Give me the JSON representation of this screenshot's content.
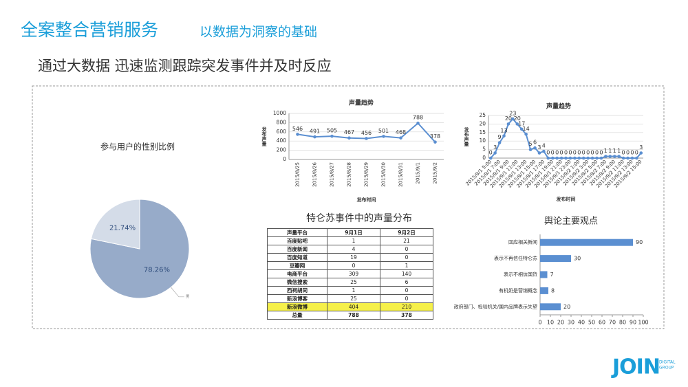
{
  "header": {
    "title": "全案整合营销服务",
    "subtitle": "以数据为洞察的基础"
  },
  "heading": "通过大数据 迅速监测跟踪突发事件并及时反应",
  "chart_data": [
    {
      "type": "pie",
      "title": "参与用户的性别比例",
      "categories": [
        "男",
        null
      ],
      "values": [
        78.26,
        21.74
      ],
      "value_labels": [
        "78.26%",
        "21.74%"
      ],
      "colors": [
        "#97abc9",
        "#d4dce8"
      ]
    },
    {
      "type": "line",
      "title": "声量趋势",
      "x_label": "发布时间",
      "y_label": "发布声量",
      "categories": [
        "2015/8/25",
        "2015/8/26",
        "2015/8/27",
        "2015/8/28",
        "2015/8/29",
        "2015/8/30",
        "2015/8/31",
        "2015/9/1",
        "2015/9/2"
      ],
      "values": [
        546,
        491,
        505,
        467,
        456,
        501,
        468,
        788,
        378
      ],
      "color": "#5b8fd1",
      "ylim": [
        0,
        1000
      ],
      "yticks": [
        0,
        200,
        400,
        600,
        800,
        1000
      ],
      "grid": true,
      "label_rotation": -90
    },
    {
      "type": "line",
      "title": "声量趋势",
      "x_label": "发布时间",
      "y_label": "发布声量",
      "categories": [
        "2015/9/1 5:00",
        null,
        "2015/9/1 7:00",
        null,
        "2015/9/1 9:00",
        null,
        "2015/9/1 11:00",
        null,
        "2015/9/1 13:00",
        null,
        "2015/9/1 15:00",
        null,
        "2015/9/1 17:00",
        null,
        "2015/9/1 19:00",
        null,
        "2015/9/1 21:00",
        null,
        "2015/9/1 23:00",
        null,
        "2015/9/2 1:00",
        null,
        "2015/9/2 3:00",
        null,
        "2015/9/2 5:00",
        null,
        "2015/9/2 7:00",
        null,
        "2015/9/2 9:00",
        null,
        "2015/9/2 11:00",
        null,
        "2015/9/2 13:00",
        null,
        "2015/9/2 15:00"
      ],
      "values": [
        0,
        3,
        9,
        13,
        20,
        23,
        20,
        17,
        14,
        5,
        6,
        3,
        4,
        0,
        0,
        0,
        0,
        0,
        0,
        0,
        0,
        0,
        0,
        0,
        0,
        0,
        1,
        1,
        1,
        1,
        0,
        0,
        0,
        0,
        3
      ],
      "color": "#5b8fd1",
      "ylim": [
        0,
        25
      ],
      "yticks": [
        0,
        5,
        10,
        15,
        20,
        25
      ],
      "grid": true,
      "label_rotation": -45
    },
    {
      "type": "bar",
      "orientation": "horizontal",
      "title": "舆论主要观点",
      "categories": [
        "回应相关新闻",
        "表示不再信任特仑苏",
        "表示不相信国货",
        "有机奶是营销概念",
        "政府部门、检验机关/国内品牌表示失望"
      ],
      "values": [
        90,
        30,
        7,
        8,
        20
      ],
      "color": "#5b8fd1",
      "xlim": [
        0,
        100
      ],
      "xticks": [
        0,
        10,
        20,
        30,
        40,
        50,
        60,
        70,
        80,
        90,
        100
      ],
      "grid": false
    }
  ],
  "table": {
    "title": "特仑苏事件中的声量分布",
    "header": [
      "声量平台",
      "9月1日",
      "9月2日"
    ],
    "rows": [
      [
        "百度贴吧",
        1,
        21
      ],
      [
        "百度新闻",
        4,
        0
      ],
      [
        "百度知道",
        19,
        0
      ],
      [
        "豆瓣网",
        0,
        1
      ],
      [
        "电商平台",
        309,
        140
      ],
      [
        "微信搜索",
        25,
        6
      ],
      [
        "西祠胡同",
        1,
        0
      ],
      [
        "新浪博客",
        25,
        0
      ],
      [
        "新浪微博",
        404,
        210
      ],
      [
        "总量",
        788,
        378
      ]
    ]
  },
  "logo": {
    "name": "JOIN",
    "tagline": [
      "DIGITAL",
      "GROUP"
    ]
  }
}
